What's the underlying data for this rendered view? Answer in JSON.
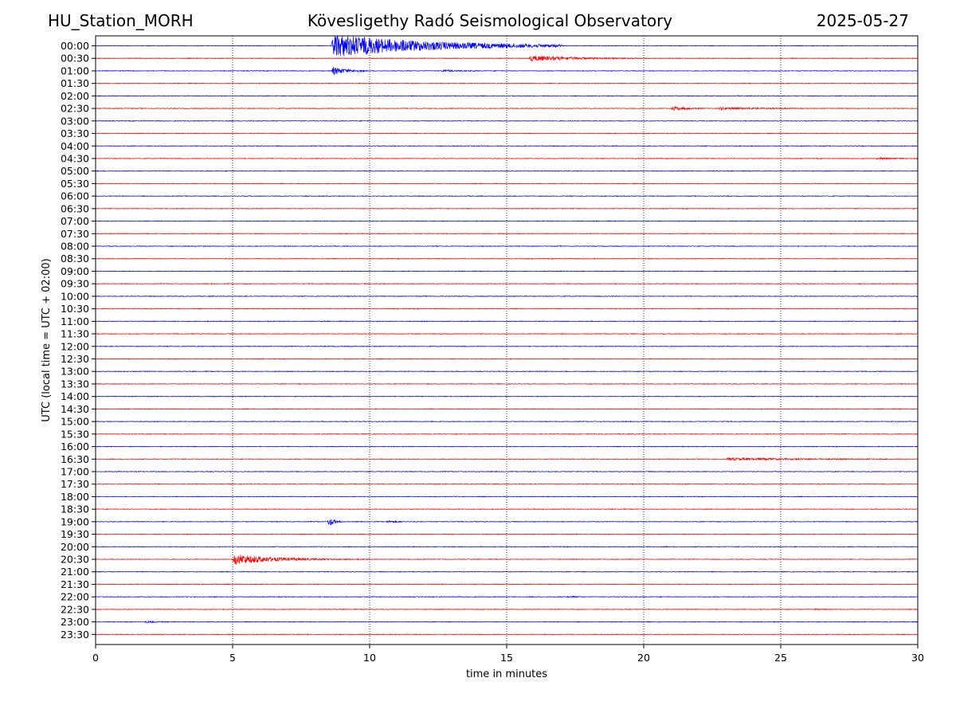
{
  "header": {
    "station": "HU_Station_MORH",
    "observatory": "Kövesligethy Radó Seismological Observatory",
    "date": "2025-05-27"
  },
  "chart_data": {
    "type": "line",
    "xlabel": "time in minutes",
    "ylabel": "UTC (local time = UTC + 02:00)",
    "xlim": [
      0,
      30
    ],
    "x_ticks": [
      0,
      5,
      10,
      15,
      20,
      25,
      30
    ],
    "row_labels": [
      "00:00",
      "00:30",
      "01:00",
      "01:30",
      "02:00",
      "02:30",
      "03:00",
      "03:30",
      "04:00",
      "04:30",
      "05:00",
      "05:30",
      "06:00",
      "06:30",
      "07:00",
      "07:30",
      "08:00",
      "08:30",
      "09:00",
      "09:30",
      "10:00",
      "10:30",
      "11:00",
      "11:30",
      "12:00",
      "12:30",
      "13:00",
      "13:30",
      "14:00",
      "14:30",
      "15:00",
      "15:30",
      "16:00",
      "16:30",
      "17:00",
      "17:30",
      "18:00",
      "18:30",
      "19:00",
      "19:30",
      "20:00",
      "20:30",
      "21:00",
      "21:30",
      "22:00",
      "22:30",
      "23:00",
      "23:30"
    ],
    "row_colors": [
      "#0000ff",
      "#ff0000"
    ],
    "grid": "vertical dotted",
    "events": [
      {
        "row": "00:00",
        "start_min": 8.6,
        "peak_amp": 1.9,
        "decay_min": 3.5,
        "end_min": 17.0
      },
      {
        "row": "00:30",
        "start_min": 15.8,
        "peak_amp": 0.45,
        "decay_min": 1.5,
        "end_min": 20.0
      },
      {
        "row": "01:00",
        "start_min": 8.6,
        "peak_amp": 0.7,
        "decay_min": 0.5,
        "end_min": 9.8
      },
      {
        "row": "01:00",
        "start_min": 12.6,
        "peak_amp": 0.15,
        "decay_min": 0.6,
        "end_min": 14.0
      },
      {
        "row": "02:30",
        "start_min": 21.0,
        "peak_amp": 0.38,
        "decay_min": 0.5,
        "end_min": 22.2
      },
      {
        "row": "02:30",
        "start_min": 22.7,
        "peak_amp": 0.2,
        "decay_min": 1.2,
        "end_min": 25.5
      },
      {
        "row": "04:30",
        "start_min": 28.5,
        "peak_amp": 0.15,
        "decay_min": 0.6,
        "end_min": 30.0
      },
      {
        "row": "16:30",
        "start_min": 23.0,
        "peak_amp": 0.18,
        "decay_min": 2.5,
        "end_min": 29.0
      },
      {
        "row": "19:00",
        "start_min": 8.45,
        "peak_amp": 1.0,
        "decay_min": 0.2,
        "end_min": 9.0
      },
      {
        "row": "19:00",
        "start_min": 10.6,
        "peak_amp": 0.18,
        "decay_min": 0.3,
        "end_min": 11.2
      },
      {
        "row": "20:30",
        "start_min": 5.0,
        "peak_amp": 0.9,
        "decay_min": 1.3,
        "end_min": 10.0
      },
      {
        "row": "22:00",
        "start_min": 17.2,
        "peak_amp": 0.12,
        "decay_min": 0.3,
        "end_min": 17.8
      },
      {
        "row": "22:30",
        "start_min": 26.2,
        "peak_amp": 0.1,
        "decay_min": 0.3,
        "end_min": 26.7
      },
      {
        "row": "23:00",
        "start_min": 1.8,
        "peak_amp": 0.15,
        "decay_min": 0.4,
        "end_min": 2.9
      }
    ]
  }
}
